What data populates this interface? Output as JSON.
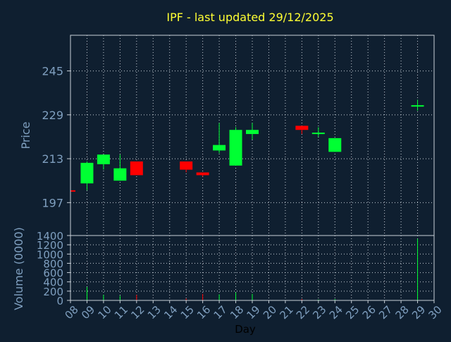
{
  "colors": {
    "background": "#0f1f30",
    "title": "#ffff33",
    "axis_text": "#7f9fbf",
    "frame": "#c8d0d8",
    "grid": "#c8d0d8",
    "up": "#00ff33",
    "down": "#ff0000"
  },
  "chart_data": [
    {
      "type": "candlestick",
      "title": "IPF - last updated 29/12/2025",
      "ylabel": "Price",
      "xlim": [
        8,
        30
      ],
      "ylim": [
        185,
        258
      ],
      "yticks": [
        197,
        213,
        229,
        245
      ],
      "grid": true,
      "candles": [
        {
          "day": 8,
          "open": 201.5,
          "close": 201.5,
          "high": 201.5,
          "low": 201.5,
          "dir": "down"
        },
        {
          "day": 9,
          "open": 204,
          "close": 211.5,
          "high": 212,
          "low": 201.5,
          "dir": "up"
        },
        {
          "day": 10,
          "open": 211,
          "close": 214.5,
          "high": 214.5,
          "low": 209,
          "dir": "up"
        },
        {
          "day": 11,
          "open": 205,
          "close": 209.5,
          "high": 214.5,
          "low": 205,
          "dir": "up"
        },
        {
          "day": 12,
          "open": 212,
          "close": 207,
          "high": 212,
          "low": 207,
          "dir": "down"
        },
        {
          "day": 15,
          "open": 212,
          "close": 209,
          "high": 212,
          "low": 208,
          "dir": "down"
        },
        {
          "day": 16,
          "open": 208,
          "close": 207,
          "high": 208,
          "low": 206.5,
          "dir": "down"
        },
        {
          "day": 17,
          "open": 216,
          "close": 218,
          "high": 226,
          "low": 215,
          "dir": "up"
        },
        {
          "day": 18,
          "open": 210.5,
          "close": 223.5,
          "high": 224.5,
          "low": 210.5,
          "dir": "up"
        },
        {
          "day": 19,
          "open": 222,
          "close": 223.5,
          "high": 226,
          "low": 220,
          "dir": "up"
        },
        {
          "day": 22,
          "open": 225,
          "close": 223.5,
          "high": 225,
          "low": 222,
          "dir": "down"
        },
        {
          "day": 23,
          "open": 222,
          "close": 222.5,
          "high": 224.5,
          "low": 221,
          "dir": "up"
        },
        {
          "day": 24,
          "open": 215.5,
          "close": 220.5,
          "high": 220.5,
          "low": 215.5,
          "dir": "up"
        },
        {
          "day": 29,
          "open": 232,
          "close": 232.5,
          "high": 234.5,
          "low": 230.5,
          "dir": "up"
        }
      ]
    },
    {
      "type": "bar",
      "ylabel": "Volume (0000)",
      "xlabel": "Day",
      "xlim": [
        8,
        30
      ],
      "ylim": [
        0,
        1400
      ],
      "yticks": [
        0,
        200,
        400,
        600,
        800,
        1000,
        1200,
        1400
      ],
      "xticks": [
        "08",
        "09",
        "10",
        "11",
        "12",
        "13",
        "14",
        "15",
        "16",
        "17",
        "18",
        "19",
        "20",
        "21",
        "22",
        "23",
        "24",
        "25",
        "26",
        "27",
        "28",
        "29",
        "30"
      ],
      "grid": true,
      "bars": [
        {
          "day": 8,
          "value": 5,
          "dir": "down"
        },
        {
          "day": 9,
          "value": 290,
          "dir": "up"
        },
        {
          "day": 10,
          "value": 120,
          "dir": "up"
        },
        {
          "day": 11,
          "value": 100,
          "dir": "up"
        },
        {
          "day": 12,
          "value": 120,
          "dir": "down"
        },
        {
          "day": 15,
          "value": 40,
          "dir": "down"
        },
        {
          "day": 16,
          "value": 140,
          "dir": "down"
        },
        {
          "day": 17,
          "value": 130,
          "dir": "up"
        },
        {
          "day": 18,
          "value": 170,
          "dir": "up"
        },
        {
          "day": 19,
          "value": 140,
          "dir": "up"
        },
        {
          "day": 22,
          "value": 30,
          "dir": "down"
        },
        {
          "day": 23,
          "value": 20,
          "dir": "up"
        },
        {
          "day": 24,
          "value": 30,
          "dir": "up"
        },
        {
          "day": 29,
          "value": 1330,
          "dir": "up"
        }
      ]
    }
  ]
}
